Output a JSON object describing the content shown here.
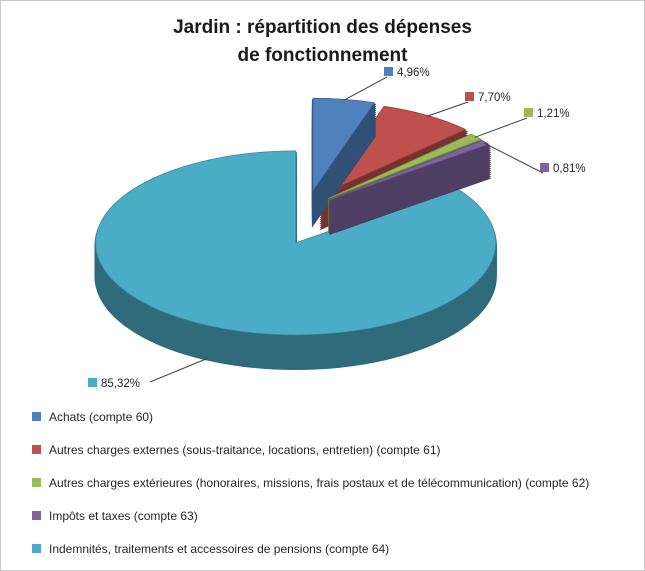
{
  "title": {
    "line1": "Jardin : répartition des dépenses",
    "line2": "de fonctionnement"
  },
  "chart_data": {
    "type": "pie",
    "effect": "3d-exploded",
    "title": "Jardin : répartition des dépenses de fonctionnement",
    "legend_position": "bottom-left",
    "background": "#FFFFFF",
    "border_color": "#C9C9C9",
    "text_color": "#262626",
    "leader_line_color": "#404040",
    "slices": [
      {
        "label": "Achats (compte 60)",
        "value": 4.96,
        "display": "4,96%",
        "color": "#4F81BD"
      },
      {
        "label": "Autres charges externes (sous-traitance, locations, entretien) (compte 61)",
        "value": 7.7,
        "display": "7,70%",
        "color": "#C0504D"
      },
      {
        "label": "Autres charges extérieures (honoraires, missions, frais postaux et de télécommunication) (compte 62)",
        "value": 1.21,
        "display": "1,21%",
        "color": "#9BBB59"
      },
      {
        "label": "Impôts et taxes (compte 63)",
        "value": 0.81,
        "display": "0,81%",
        "color": "#8064A2"
      },
      {
        "label": "Indemnités, traitements et accessoires de pensions (compte 64)",
        "value": 85.32,
        "display": "85,32%",
        "color": "#4BACC6"
      }
    ]
  }
}
